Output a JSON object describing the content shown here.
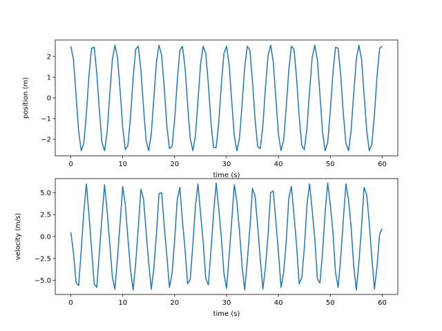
{
  "chart_data": [
    {
      "type": "line",
      "title": "",
      "xlabel": "time (s)",
      "ylabel": "position (m)",
      "xlim": [
        -3,
        63
      ],
      "ylim": [
        -2.8,
        2.8
      ],
      "xticks": [
        0,
        10,
        20,
        30,
        40,
        50,
        60
      ],
      "yticks": [
        -2,
        -1,
        0,
        1,
        2
      ],
      "xtick_labels": [
        "0",
        "10",
        "20",
        "30",
        "40",
        "50",
        "60"
      ],
      "ytick_labels": [
        "−2",
        "−1",
        "0",
        "1",
        "2"
      ],
      "grid": false,
      "color": "#1f77b4",
      "series": [
        {
          "x": [
            0.0,
            0.5,
            1.0,
            1.5,
            2.0,
            2.5,
            3.0,
            3.5,
            4.0,
            4.5,
            5.0,
            5.5,
            6.0,
            6.5,
            7.0,
            7.5,
            8.0,
            8.5,
            9.0,
            9.5,
            10.0,
            10.5,
            11.0,
            11.5,
            12.0,
            12.5,
            13.0,
            13.5,
            14.0,
            14.5,
            15.0,
            15.5,
            16.0,
            16.5,
            17.0,
            17.5,
            18.0,
            18.5,
            19.0,
            19.5,
            20.0,
            20.5,
            21.0,
            21.5,
            22.0,
            22.5,
            23.0,
            23.5,
            24.0,
            24.5,
            25.0,
            25.5,
            26.0,
            26.5,
            27.0,
            27.5,
            28.0,
            28.5,
            29.0,
            29.5,
            30.0,
            30.5,
            31.0,
            31.5,
            32.0,
            32.5,
            33.0,
            33.5,
            34.0,
            34.5,
            35.0,
            35.5,
            36.0,
            36.5,
            37.0,
            37.5,
            38.0,
            38.5,
            39.0,
            39.5,
            40.0,
            40.5,
            41.0,
            41.5,
            42.0,
            42.5,
            43.0,
            43.5,
            44.0,
            44.5,
            45.0,
            45.5,
            46.0,
            46.5,
            47.0,
            47.5,
            48.0,
            48.5,
            49.0,
            49.5,
            50.0,
            50.5,
            51.0,
            51.5,
            52.0,
            52.5,
            53.0,
            53.5,
            54.0,
            54.5,
            55.0,
            55.5,
            56.0,
            56.5,
            57.0,
            57.5,
            58.0,
            58.5,
            59.0,
            59.5,
            60.0
          ],
          "y": [
            2.5,
            1.85,
            0.18,
            -1.6,
            -2.55,
            -2.2,
            -0.75,
            1.1,
            2.4,
            2.45,
            1.2,
            -0.6,
            -2.15,
            -2.55,
            -1.65,
            0.15,
            1.85,
            2.55,
            1.95,
            0.35,
            -1.45,
            -2.5,
            -2.3,
            -0.9,
            0.95,
            2.35,
            2.5,
            1.35,
            -0.45,
            -2.05,
            -2.55,
            -1.75,
            0.0,
            1.75,
            2.55,
            2.05,
            0.5,
            -1.35,
            -2.45,
            -2.35,
            -1.05,
            0.8,
            2.3,
            2.5,
            1.5,
            -0.3,
            -1.95,
            -2.55,
            -1.85,
            -0.15,
            1.65,
            2.5,
            2.15,
            0.65,
            -1.2,
            -2.4,
            -2.4,
            -1.2,
            0.65,
            2.15,
            2.5,
            1.6,
            -0.15,
            -1.85,
            -2.55,
            -1.95,
            -0.3,
            1.5,
            2.5,
            2.3,
            0.8,
            -1.05,
            -2.35,
            -2.45,
            -1.35,
            0.5,
            2.05,
            2.55,
            1.75,
            0.0,
            -1.75,
            -2.55,
            -2.05,
            -0.45,
            1.35,
            2.5,
            2.35,
            0.95,
            -0.9,
            -2.3,
            -2.5,
            -1.45,
            0.35,
            1.95,
            2.55,
            1.85,
            0.15,
            -1.65,
            -2.55,
            -2.15,
            -0.6,
            1.2,
            2.45,
            2.4,
            1.1,
            -0.75,
            -2.2,
            -2.55,
            -1.6,
            0.2,
            1.85,
            2.55,
            1.9,
            0.2,
            -1.55,
            -2.55,
            -2.25,
            -0.8,
            1.05,
            2.4,
            2.5
          ]
        }
      ]
    },
    {
      "type": "line",
      "title": "",
      "xlabel": "time (s)",
      "ylabel": "velocity (m/s)",
      "xlim": [
        -3,
        63
      ],
      "ylim": [
        -6.6,
        6.6
      ],
      "xticks": [
        0,
        10,
        20,
        30,
        40,
        50,
        60
      ],
      "yticks": [
        -5.0,
        -2.5,
        0.0,
        2.5,
        5.0
      ],
      "xtick_labels": [
        "0",
        "10",
        "20",
        "30",
        "40",
        "50",
        "60"
      ],
      "ytick_labels": [
        "−5.0",
        "−2.5",
        "0.0",
        "2.5",
        "5.0"
      ],
      "grid": false,
      "color": "#1f77b4",
      "series": [
        {
          "x": [
            0.0,
            0.5,
            1.0,
            1.5,
            2.0,
            2.5,
            3.0,
            3.5,
            4.0,
            4.5,
            5.0,
            5.5,
            6.0,
            6.5,
            7.0,
            7.5,
            8.0,
            8.5,
            9.0,
            9.5,
            10.0,
            10.5,
            11.0,
            11.5,
            12.0,
            12.5,
            13.0,
            13.5,
            14.0,
            14.5,
            15.0,
            15.5,
            16.0,
            16.5,
            17.0,
            17.5,
            18.0,
            18.5,
            19.0,
            19.5,
            20.0,
            20.5,
            21.0,
            21.5,
            22.0,
            22.5,
            23.0,
            23.5,
            24.0,
            24.5,
            25.0,
            25.5,
            26.0,
            26.5,
            27.0,
            27.5,
            28.0,
            28.5,
            29.0,
            29.5,
            30.0,
            30.5,
            31.0,
            31.5,
            32.0,
            32.5,
            33.0,
            33.5,
            34.0,
            34.5,
            35.0,
            35.5,
            36.0,
            36.5,
            37.0,
            37.5,
            38.0,
            38.5,
            39.0,
            39.5,
            40.0,
            40.5,
            41.0,
            41.5,
            42.0,
            42.5,
            43.0,
            43.5,
            44.0,
            44.5,
            45.0,
            45.5,
            46.0,
            46.5,
            47.0,
            47.5,
            48.0,
            48.5,
            49.0,
            49.5,
            50.0,
            50.5,
            51.0,
            51.5,
            52.0,
            52.5,
            53.0,
            53.5,
            54.0,
            54.5,
            55.0,
            55.5,
            56.0,
            56.5,
            57.0,
            57.5,
            58.0,
            58.5,
            59.0,
            59.5,
            60.0
          ],
          "y": [
            0.5,
            -1.8,
            -5.2,
            -5.6,
            -1.6,
            2.8,
            6.0,
            2.4,
            -1.4,
            -5.4,
            -5.8,
            -1.8,
            2.2,
            5.9,
            2.9,
            -0.8,
            -4.6,
            -6.0,
            -2.4,
            1.6,
            5.7,
            3.6,
            -0.2,
            -3.8,
            -6.1,
            -3.0,
            1.0,
            5.4,
            4.3,
            0.6,
            -3.0,
            -6.0,
            -3.6,
            0.4,
            4.9,
            5.0,
            1.2,
            -2.2,
            -5.8,
            -4.2,
            -0.4,
            4.2,
            5.6,
            1.8,
            -1.4,
            -5.4,
            -4.9,
            -1.0,
            3.4,
            6.0,
            2.6,
            -0.6,
            -4.8,
            -5.5,
            -1.6,
            2.6,
            6.1,
            3.2,
            -0.1,
            -4.2,
            -5.9,
            -2.2,
            1.8,
            5.9,
            3.9,
            0.6,
            -3.4,
            -6.1,
            -2.8,
            1.0,
            5.5,
            4.6,
            1.2,
            -2.6,
            -6.0,
            -3.5,
            0.2,
            5.0,
            5.2,
            1.8,
            -1.8,
            -5.8,
            -4.1,
            -0.6,
            4.4,
            5.7,
            2.4,
            -1.0,
            -5.4,
            -4.7,
            -1.2,
            3.6,
            6.0,
            3.0,
            -0.2,
            -4.8,
            -5.3,
            -1.8,
            2.8,
            6.1,
            3.6,
            0.5,
            -4.1,
            -5.8,
            -2.4,
            1.9,
            6.0,
            4.2,
            1.1,
            -3.3,
            -6.1,
            -3.0,
            1.0,
            5.6,
            4.8,
            1.6,
            -2.5,
            -6.0,
            -3.4,
            0.3,
            0.9
          ]
        }
      ]
    }
  ]
}
